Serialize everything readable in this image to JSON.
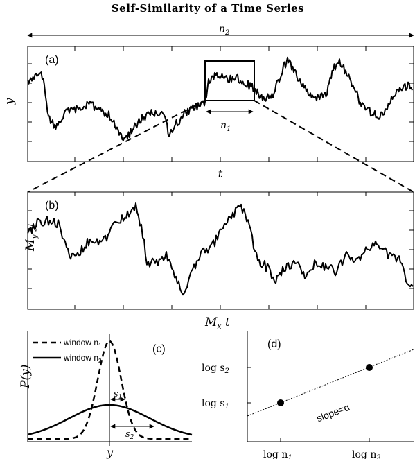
{
  "figure": {
    "title": "Self-Similarity of a Time Series",
    "colors": {
      "ink": "#000000",
      "background": "#ffffff"
    }
  },
  "panel_a": {
    "tag": "(a)",
    "ylabel": "y",
    "xlabel": "t",
    "span_label": {
      "base": "n",
      "sub": "2"
    },
    "window_label": {
      "base": "n",
      "sub": "1"
    }
  },
  "panel_b": {
    "tag": "(b)",
    "ylabel": {
      "base": "M",
      "sub": "y",
      "tail": " y"
    },
    "xlabel": {
      "base": "M",
      "sub": "x",
      "tail": " t"
    }
  },
  "panel_c": {
    "tag": "(c)",
    "ylabel": "P(y)",
    "xlabel": "y",
    "legend": [
      {
        "label": "window n",
        "sub": "1",
        "style": "dashed"
      },
      {
        "label": "window n",
        "sub": "2",
        "style": "solid"
      }
    ],
    "width_labels": [
      {
        "base": "s",
        "sub": "1"
      },
      {
        "base": "s",
        "sub": "2"
      }
    ]
  },
  "panel_d": {
    "tag": "(d)",
    "x_ticks": [
      {
        "base": "log n",
        "sub": "1"
      },
      {
        "base": "log n",
        "sub": "2"
      }
    ],
    "y_ticks": [
      {
        "base": "log s",
        "sub": "2"
      },
      {
        "base": "log s",
        "sub": "1"
      }
    ],
    "fit_label": "slope=α"
  }
}
